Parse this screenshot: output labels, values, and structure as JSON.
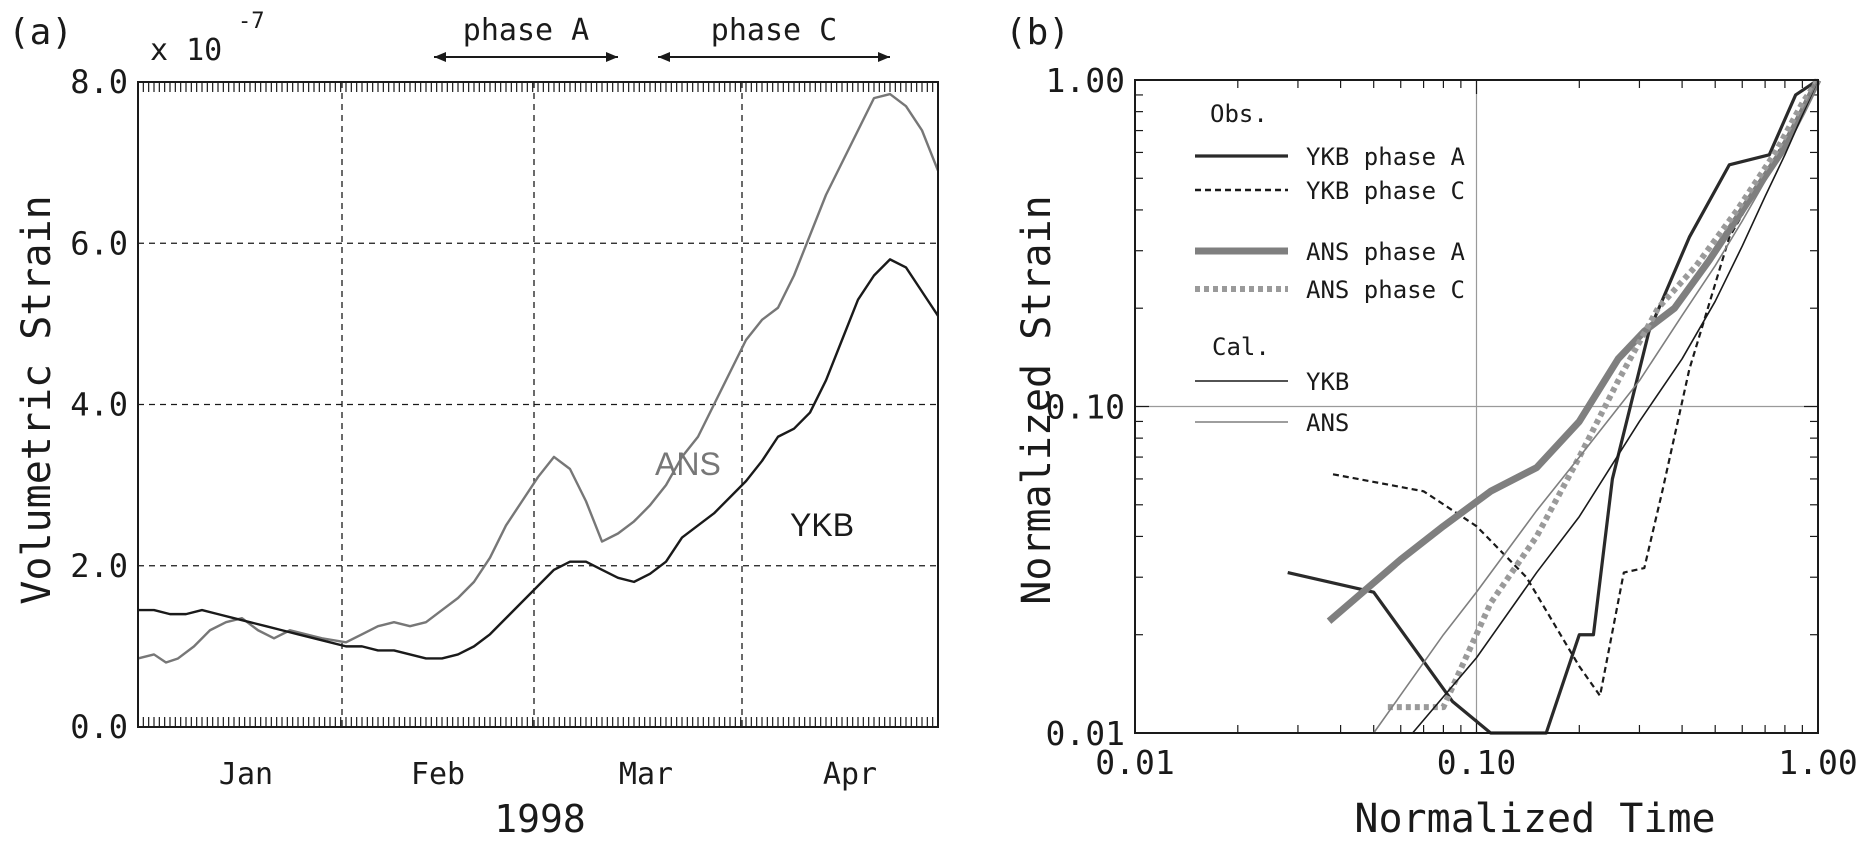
{
  "chart_data": [
    {
      "type": "line",
      "panel_label": "(a)",
      "xlabel": "1998",
      "ylabel": "Volumetric Strain",
      "y_multiplier_label": "x 10",
      "y_multiplier_exponent": "-7",
      "ylim": [
        0,
        8
      ],
      "x_month_ticks": [
        "Jan",
        "Feb",
        "Mar",
        "Apr"
      ],
      "y_ticks": [
        "0.0",
        "2.0",
        "4.0",
        "6.0",
        "8.0"
      ],
      "grid": "dashed vertical at month boundaries; dashed horizontal at 2,4,6",
      "phases": [
        {
          "label": "phase A",
          "x_from": 0.37,
          "x_to": 0.6
        },
        {
          "label": "phase C",
          "x_from": 0.65,
          "x_to": 0.94
        }
      ],
      "series": [
        {
          "name": "ANS",
          "color": "#777777",
          "x": [
            0.0,
            0.02,
            0.035,
            0.05,
            0.07,
            0.09,
            0.11,
            0.13,
            0.15,
            0.17,
            0.19,
            0.21,
            0.23,
            0.26,
            0.28,
            0.3,
            0.32,
            0.34,
            0.36,
            0.38,
            0.4,
            0.42,
            0.44,
            0.46,
            0.48,
            0.5,
            0.52,
            0.54,
            0.56,
            0.58,
            0.6,
            0.62,
            0.64,
            0.66,
            0.68,
            0.7,
            0.72,
            0.74,
            0.76,
            0.78,
            0.8,
            0.82,
            0.84,
            0.86,
            0.88,
            0.9,
            0.92,
            0.94,
            0.96,
            0.98,
            1.0
          ],
          "values": [
            0.85,
            0.9,
            0.8,
            0.85,
            1.0,
            1.2,
            1.3,
            1.35,
            1.2,
            1.1,
            1.2,
            1.15,
            1.1,
            1.05,
            1.15,
            1.25,
            1.3,
            1.25,
            1.3,
            1.45,
            1.6,
            1.8,
            2.1,
            2.5,
            2.8,
            3.1,
            3.35,
            3.2,
            2.8,
            2.3,
            2.4,
            2.55,
            2.75,
            3.0,
            3.35,
            3.6,
            4.0,
            4.4,
            4.8,
            5.05,
            5.2,
            5.6,
            6.1,
            6.6,
            7.0,
            7.4,
            7.8,
            7.85,
            7.7,
            7.4,
            6.9
          ]
        },
        {
          "name": "YKB",
          "color": "#1a1a1a",
          "x": [
            0.0,
            0.02,
            0.04,
            0.06,
            0.08,
            0.1,
            0.12,
            0.14,
            0.16,
            0.18,
            0.2,
            0.22,
            0.24,
            0.26,
            0.28,
            0.3,
            0.32,
            0.34,
            0.36,
            0.38,
            0.4,
            0.42,
            0.44,
            0.46,
            0.48,
            0.5,
            0.52,
            0.54,
            0.56,
            0.58,
            0.6,
            0.62,
            0.64,
            0.66,
            0.68,
            0.7,
            0.72,
            0.74,
            0.76,
            0.78,
            0.8,
            0.82,
            0.84,
            0.86,
            0.88,
            0.9,
            0.92,
            0.94,
            0.96,
            0.98,
            1.0
          ],
          "values": [
            1.45,
            1.45,
            1.4,
            1.4,
            1.45,
            1.4,
            1.35,
            1.3,
            1.25,
            1.2,
            1.15,
            1.1,
            1.05,
            1.0,
            1.0,
            0.95,
            0.95,
            0.9,
            0.85,
            0.85,
            0.9,
            1.0,
            1.15,
            1.35,
            1.55,
            1.75,
            1.95,
            2.05,
            2.05,
            1.95,
            1.85,
            1.8,
            1.9,
            2.05,
            2.35,
            2.5,
            2.65,
            2.85,
            3.05,
            3.3,
            3.6,
            3.7,
            3.9,
            4.3,
            4.8,
            5.3,
            5.6,
            5.8,
            5.7,
            5.4,
            5.1
          ]
        }
      ]
    },
    {
      "type": "line",
      "panel_label": "(b)",
      "xlabel": "Normalized Time",
      "ylabel": "Normalized Strain",
      "x_scale": "log",
      "y_scale": "log",
      "xlim": [
        0.01,
        1.0
      ],
      "ylim": [
        0.01,
        1.0
      ],
      "x_ticks": [
        "0.01",
        "0.10",
        "1.00"
      ],
      "y_ticks": [
        "0.01",
        "0.10",
        "1.00"
      ],
      "legend": {
        "placement": "top-left",
        "obs_header": "Obs.",
        "cal_header": "Cal.",
        "entries": [
          {
            "label": "YKB phase A",
            "style": "solid-thick-dark"
          },
          {
            "label": "YKB phase C",
            "style": "dashed-dark"
          },
          {
            "label": "ANS phase A",
            "style": "solid-thick-gray"
          },
          {
            "label": "ANS phase C",
            "style": "dotted-thick-gray"
          },
          {
            "label": "YKB",
            "style": "thin-dark"
          },
          {
            "label": "ANS",
            "style": "thin-gray"
          }
        ]
      },
      "series": [
        {
          "name": "YKB phase A",
          "x": [
            0.028,
            0.05,
            0.085,
            0.11,
            0.16,
            0.2,
            0.22,
            0.25,
            0.32,
            0.42,
            0.55,
            0.72,
            0.86,
            1.0
          ],
          "y": [
            0.031,
            0.027,
            0.0125,
            0.01,
            0.01,
            0.02,
            0.02,
            0.06,
            0.17,
            0.33,
            0.55,
            0.59,
            0.9,
            1.0
          ]
        },
        {
          "name": "YKB phase C",
          "x": [
            0.038,
            0.07,
            0.1,
            0.14,
            0.2,
            0.23,
            0.27,
            0.31,
            0.35,
            0.42,
            0.55,
            0.75,
            1.0
          ],
          "y": [
            0.062,
            0.055,
            0.043,
            0.03,
            0.016,
            0.013,
            0.031,
            0.032,
            0.055,
            0.13,
            0.33,
            0.58,
            1.0
          ]
        },
        {
          "name": "ANS phase A",
          "x": [
            0.037,
            0.06,
            0.08,
            0.11,
            0.15,
            0.2,
            0.26,
            0.31,
            0.38,
            0.48,
            0.62,
            0.78,
            0.9,
            1.0
          ],
          "y": [
            0.022,
            0.034,
            0.043,
            0.055,
            0.065,
            0.09,
            0.14,
            0.17,
            0.2,
            0.28,
            0.42,
            0.6,
            0.8,
            1.0
          ]
        },
        {
          "name": "ANS phase C",
          "x": [
            0.055,
            0.08,
            0.11,
            0.15,
            0.2,
            0.26,
            0.34,
            0.44,
            0.58,
            0.75,
            0.9,
            1.0
          ],
          "y": [
            0.012,
            0.012,
            0.025,
            0.04,
            0.07,
            0.12,
            0.2,
            0.27,
            0.4,
            0.6,
            0.85,
            1.0
          ]
        },
        {
          "name": "YKB",
          "x": [
            0.065,
            0.1,
            0.15,
            0.2,
            0.3,
            0.4,
            0.5,
            0.6,
            0.7,
            0.8,
            0.9,
            1.0
          ],
          "y": [
            0.01,
            0.017,
            0.031,
            0.046,
            0.09,
            0.14,
            0.21,
            0.31,
            0.44,
            0.59,
            0.78,
            1.0
          ]
        },
        {
          "name": "ANS",
          "x": [
            0.05,
            0.08,
            0.1,
            0.15,
            0.2,
            0.3,
            0.4,
            0.5,
            0.6,
            0.7,
            0.8,
            0.9,
            1.0
          ],
          "y": [
            0.01,
            0.02,
            0.027,
            0.048,
            0.07,
            0.12,
            0.19,
            0.27,
            0.37,
            0.49,
            0.63,
            0.8,
            1.0
          ]
        }
      ]
    }
  ]
}
